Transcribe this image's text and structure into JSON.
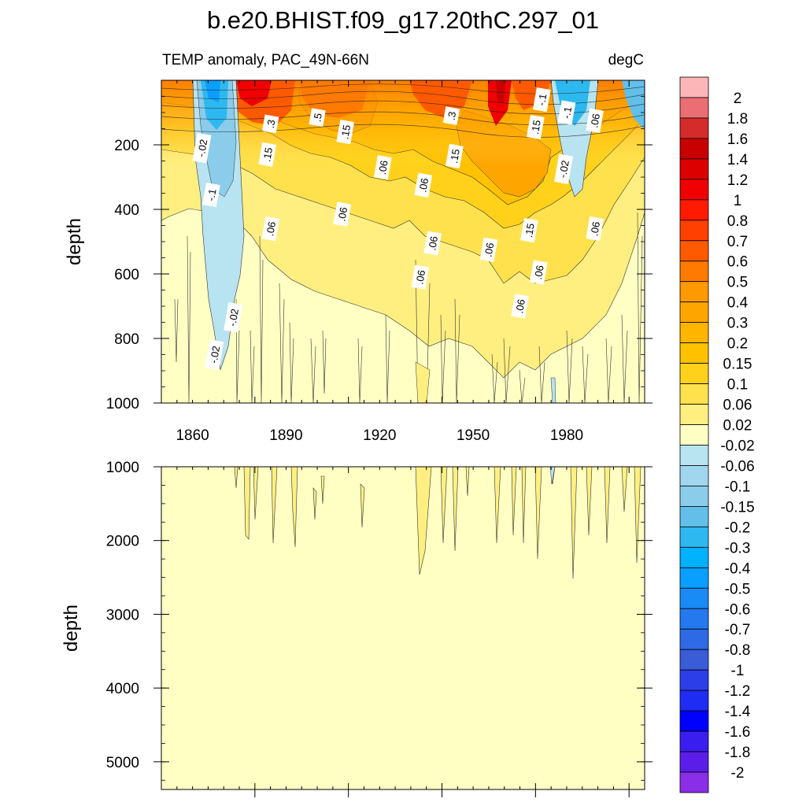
{
  "chart_data": {
    "type": "heatmap",
    "title": "b.e20.BHIST.f09_g17.20thC.297_01",
    "variable": "TEMP anomaly, PAC_49N-66N",
    "units": "degC",
    "xlabel": "",
    "ylabel": "depth",
    "xlim": [
      1850,
      2005
    ],
    "x_ticks": [
      1860,
      1890,
      1920,
      1950,
      1980
    ],
    "x_tick_labels": [
      "1860",
      "1890",
      "1920",
      "1950",
      "1980"
    ],
    "panels": [
      {
        "name": "upper",
        "ylim": [
          0,
          1000
        ],
        "y_ticks": [
          200,
          400,
          600,
          800,
          1000
        ],
        "y_tick_labels": [
          "200",
          "400",
          "600",
          "800",
          "1000"
        ],
        "ylabel": "depth"
      },
      {
        "name": "lower",
        "ylim": [
          1000,
          5375
        ],
        "y_ticks": [
          1000,
          2000,
          3000,
          4000,
          5000
        ],
        "y_tick_labels": [
          "1000",
          "2000",
          "3000",
          "4000",
          "5000"
        ],
        "ylabel": "depth"
      }
    ],
    "colorbar": {
      "labels": [
        "2",
        "1.8",
        "1.6",
        "1.4",
        "1.2",
        "1",
        "0.8",
        "0.7",
        "0.6",
        "0.5",
        "0.4",
        "0.3",
        "0.2",
        "0.15",
        "0.1",
        "0.06",
        "0.02",
        "-0.02",
        "-0.06",
        "-0.1",
        "-0.15",
        "-0.2",
        "-0.3",
        "-0.4",
        "-0.5",
        "-0.6",
        "-0.7",
        "-0.8",
        "-1",
        "-1.2",
        "-1.4",
        "-1.6",
        "-1.8",
        "-2"
      ],
      "colors": [
        "#fcb6b8",
        "#ea6e72",
        "#d52b2b",
        "#c80000",
        "#dc0000",
        "#f00000",
        "#ff1a00",
        "#ff4000",
        "#ff5a00",
        "#ff7a00",
        "#ff9900",
        "#ffa500",
        "#ffb400",
        "#ffc100",
        "#ffd11a",
        "#ffe14d",
        "#ffef80",
        "#ffffc4",
        "#b8e3f1",
        "#a0d6ee",
        "#8accea",
        "#62bfea",
        "#2eb8f0",
        "#00b2ff",
        "#0a9eff",
        "#1a8af5",
        "#2479ee",
        "#2e6ae6",
        "#3a5cd6",
        "#2c3ee8",
        "#1e2cf4",
        "#0000ff",
        "#3a1ef0",
        "#5a1ee8",
        "#8a2ee8"
      ]
    },
    "contour_labels": [
      {
        "text": ".3",
        "year": 1885,
        "depth": 135
      },
      {
        "text": ".5",
        "year": 1900,
        "depth": 115
      },
      {
        "text": ".15",
        "year": 1909,
        "depth": 160
      },
      {
        "text": ".15",
        "year": 1884,
        "depth": 230
      },
      {
        "text": "-.02",
        "year": 1863,
        "depth": 210
      },
      {
        "text": "-.1",
        "year": 1866,
        "depth": 355
      },
      {
        "text": ".06",
        "year": 1885,
        "depth": 460
      },
      {
        "text": ".06",
        "year": 1908,
        "depth": 415
      },
      {
        "text": ".06",
        "year": 1921,
        "depth": 270
      },
      {
        "text": ".06",
        "year": 1934,
        "depth": 325
      },
      {
        "text": ".06",
        "year": 1937,
        "depth": 505
      },
      {
        "text": ".06",
        "year": 1933,
        "depth": 610
      },
      {
        "text": ".3",
        "year": 1943,
        "depth": 110
      },
      {
        "text": ".15",
        "year": 1944,
        "depth": 235
      },
      {
        "text": ".06",
        "year": 1955,
        "depth": 525
      },
      {
        "text": ".15",
        "year": 1970,
        "depth": 145
      },
      {
        "text": "-.1",
        "year": 1972,
        "depth": 60
      },
      {
        "text": ".15",
        "year": 1968,
        "depth": 465
      },
      {
        "text": ".06",
        "year": 1971,
        "depth": 595
      },
      {
        "text": ".06",
        "year": 1965,
        "depth": 700
      },
      {
        "text": "-.1",
        "year": 1980,
        "depth": 100
      },
      {
        "text": "-.02",
        "year": 1979,
        "depth": 275
      },
      {
        "text": ".06",
        "year": 1989,
        "depth": 125
      },
      {
        "text": ".06",
        "year": 1989,
        "depth": 460
      },
      {
        "text": "-.02",
        "year": 1873,
        "depth": 735
      },
      {
        "text": "-.02",
        "year": 1867,
        "depth": 850
      }
    ]
  }
}
